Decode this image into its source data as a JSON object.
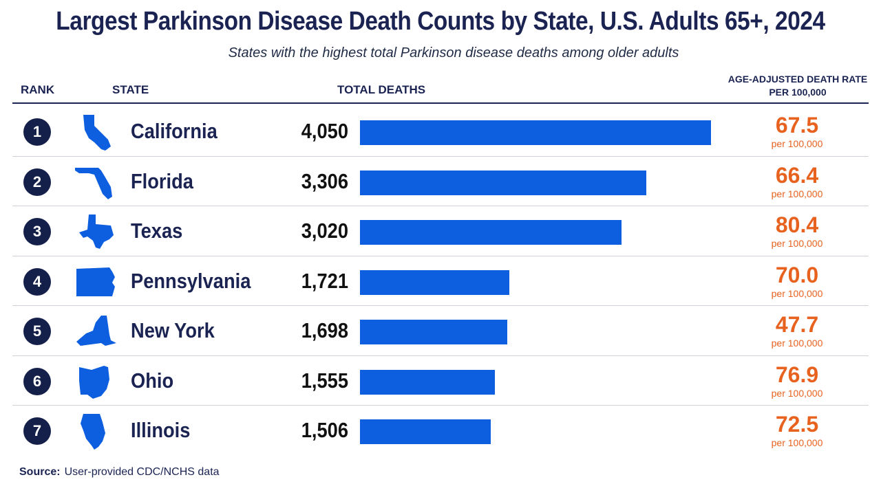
{
  "title": "Largest Parkinson Disease Death Counts by State, U.S. Adults 65+, 2024",
  "subtitle": "States with the highest total Parkinson disease deaths among older adults",
  "headers": {
    "rank": "RANK",
    "state": "STATE",
    "total": "TOTAL DEATHS",
    "rate_line1": "AGE-ADJUSTED DEATH RATE",
    "rate_line2": "PER 100,000"
  },
  "source": {
    "label": "Source:",
    "text": "User-provided CDC/NCHS data"
  },
  "colors": {
    "bar": "#0e5fe0",
    "rate": "#e8621f",
    "navy": "#1a2352"
  },
  "chart_data": {
    "type": "bar",
    "orientation": "horizontal",
    "title": "Largest Parkinson Disease Death Counts by State, U.S. Adults 65+, 2024",
    "subtitle": "States with the highest total Parkinson disease deaths among older adults",
    "categories": [
      "California",
      "Florida",
      "Texas",
      "Pennsylvania",
      "New York",
      "Ohio",
      "Illinois"
    ],
    "series": [
      {
        "name": "TOTAL DEATHS",
        "values": [
          4050,
          3306,
          3020,
          1721,
          1698,
          1555,
          1506
        ]
      }
    ],
    "rows": [
      {
        "rank": "1",
        "state": "California",
        "icon": "california-shape-icon",
        "total": "4,050",
        "total_num": 4050,
        "rate": "67.5",
        "rate_unit": "per 100,000"
      },
      {
        "rank": "2",
        "state": "Florida",
        "icon": "florida-shape-icon",
        "total": "3,306",
        "total_num": 3306,
        "rate": "66.4",
        "rate_unit": "per 100,000"
      },
      {
        "rank": "3",
        "state": "Texas",
        "icon": "texas-shape-icon",
        "total": "3,020",
        "total_num": 3020,
        "rate": "80.4",
        "rate_unit": "per 100,000"
      },
      {
        "rank": "4",
        "state": "Pennsylvania",
        "icon": "pennsylvania-shape-icon",
        "total": "1,721",
        "total_num": 1721,
        "rate": "70.0",
        "rate_unit": "per 100,000"
      },
      {
        "rank": "5",
        "state": "New York",
        "icon": "new-york-shape-icon",
        "total": "1,698",
        "total_num": 1698,
        "rate": "47.7",
        "rate_unit": "per 100,000"
      },
      {
        "rank": "6",
        "state": "Ohio",
        "icon": "ohio-shape-icon",
        "total": "1,555",
        "total_num": 1555,
        "rate": "76.9",
        "rate_unit": "per 100,000"
      },
      {
        "rank": "7",
        "state": "Illinois",
        "icon": "illinois-shape-icon",
        "total": "1,506",
        "total_num": 1506,
        "rate": "72.5",
        "rate_unit": "per 100,000"
      }
    ],
    "xlim": [
      0,
      4050
    ],
    "grid": false,
    "legend": "none"
  }
}
